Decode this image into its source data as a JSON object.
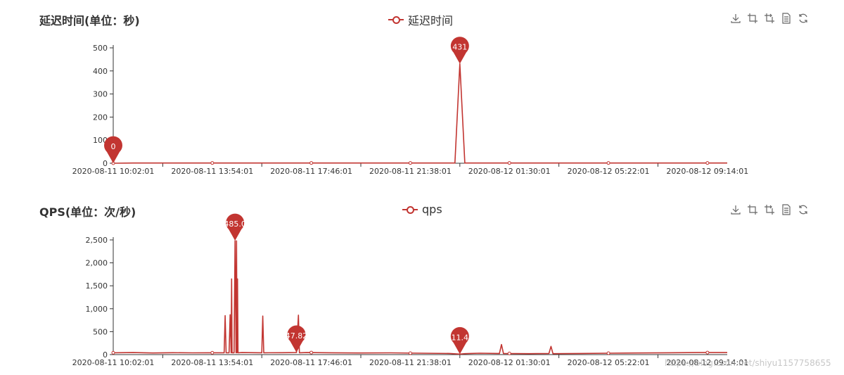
{
  "chart_data": [
    {
      "type": "line",
      "title": "延迟时间(单位：秒)",
      "series": [
        {
          "name": "延迟时间"
        }
      ],
      "x_labels": [
        "2020-08-11 10:02:01",
        "2020-08-11 13:54:01",
        "2020-08-11 17:46:01",
        "2020-08-11 21:38:01",
        "2020-08-12 01:30:01",
        "2020-08-12 05:22:01",
        "2020-08-12 09:14:01"
      ],
      "y_ticks": [
        "0",
        "100",
        "200",
        "300",
        "400",
        "500"
      ],
      "ylim": [
        0,
        500
      ],
      "points": [
        [
          0,
          0
        ],
        [
          0.2,
          1
        ],
        [
          0.5,
          1
        ],
        [
          1,
          1
        ],
        [
          1.5,
          1
        ],
        [
          2,
          1
        ],
        [
          2.5,
          1
        ],
        [
          3,
          1
        ],
        [
          3.45,
          1
        ],
        [
          3.5,
          431
        ],
        [
          3.55,
          1
        ],
        [
          4,
          1
        ],
        [
          4.5,
          1
        ],
        [
          5,
          1
        ],
        [
          5.5,
          1
        ],
        [
          6,
          1
        ],
        [
          6.2,
          1
        ]
      ],
      "markers": [
        {
          "x": 0,
          "value": "0"
        },
        {
          "x": 3.5,
          "value": "431"
        }
      ]
    },
    {
      "type": "line",
      "title": "QPS(单位：次/秒)",
      "series": [
        {
          "name": "qps"
        }
      ],
      "x_labels": [
        "2020-08-11 10:02:01",
        "2020-08-11 13:54:01",
        "2020-08-11 17:46:01",
        "2020-08-11 21:38:01",
        "2020-08-12 01:30:01",
        "2020-08-12 05:22:01",
        "2020-08-12 09:14:01"
      ],
      "y_ticks": [
        "0",
        "500",
        "1,000",
        "1,500",
        "2,000",
        "2,500"
      ],
      "ylim": [
        0,
        2500
      ],
      "points": [
        [
          0,
          40
        ],
        [
          0.2,
          45
        ],
        [
          0.4,
          35
        ],
        [
          0.6,
          42
        ],
        [
          0.8,
          38
        ],
        [
          0.95,
          40
        ],
        [
          1.12,
          40
        ],
        [
          1.13,
          850
        ],
        [
          1.14,
          40
        ],
        [
          1.17,
          40
        ],
        [
          1.18,
          870
        ],
        [
          1.19,
          40
        ],
        [
          1.195,
          1650
        ],
        [
          1.2,
          40
        ],
        [
          1.22,
          40
        ],
        [
          1.23,
          2485.08
        ],
        [
          1.24,
          40
        ],
        [
          1.245,
          2480
        ],
        [
          1.25,
          40
        ],
        [
          1.255,
          1650
        ],
        [
          1.26,
          40
        ],
        [
          1.3,
          45
        ],
        [
          1.5,
          40
        ],
        [
          1.51,
          840
        ],
        [
          1.52,
          40
        ],
        [
          1.7,
          42
        ],
        [
          1.85,
          45
        ],
        [
          1.87,
          860
        ],
        [
          1.88,
          40
        ],
        [
          1.95,
          45
        ],
        [
          2.2,
          40
        ],
        [
          2.5,
          35
        ],
        [
          2.8,
          38
        ],
        [
          3.1,
          30
        ],
        [
          3.4,
          25
        ],
        [
          3.5,
          11.4
        ],
        [
          3.55,
          20
        ],
        [
          3.6,
          25
        ],
        [
          3.7,
          30
        ],
        [
          3.9,
          25
        ],
        [
          3.92,
          220
        ],
        [
          3.94,
          25
        ],
        [
          4.2,
          20
        ],
        [
          4.4,
          25
        ],
        [
          4.42,
          180
        ],
        [
          4.44,
          20
        ],
        [
          4.7,
          25
        ],
        [
          5.0,
          30
        ],
        [
          5.3,
          35
        ],
        [
          5.6,
          40
        ],
        [
          5.9,
          45
        ],
        [
          6.2,
          45
        ]
      ],
      "markers": [
        {
          "x": 1.23,
          "value": "2485.08"
        },
        {
          "x": 1.85,
          "value": "47.82"
        },
        {
          "x": 3.5,
          "value": "11.4"
        }
      ]
    }
  ],
  "toolbox_icons": [
    "save-as-image-icon",
    "zoom-icon",
    "zoom-reset-icon",
    "data-view-icon",
    "restore-icon"
  ],
  "colors": {
    "series": "#c23531",
    "axis": "#333333"
  },
  "watermark": "https://blog.csdn.net/shiyu1157758655"
}
